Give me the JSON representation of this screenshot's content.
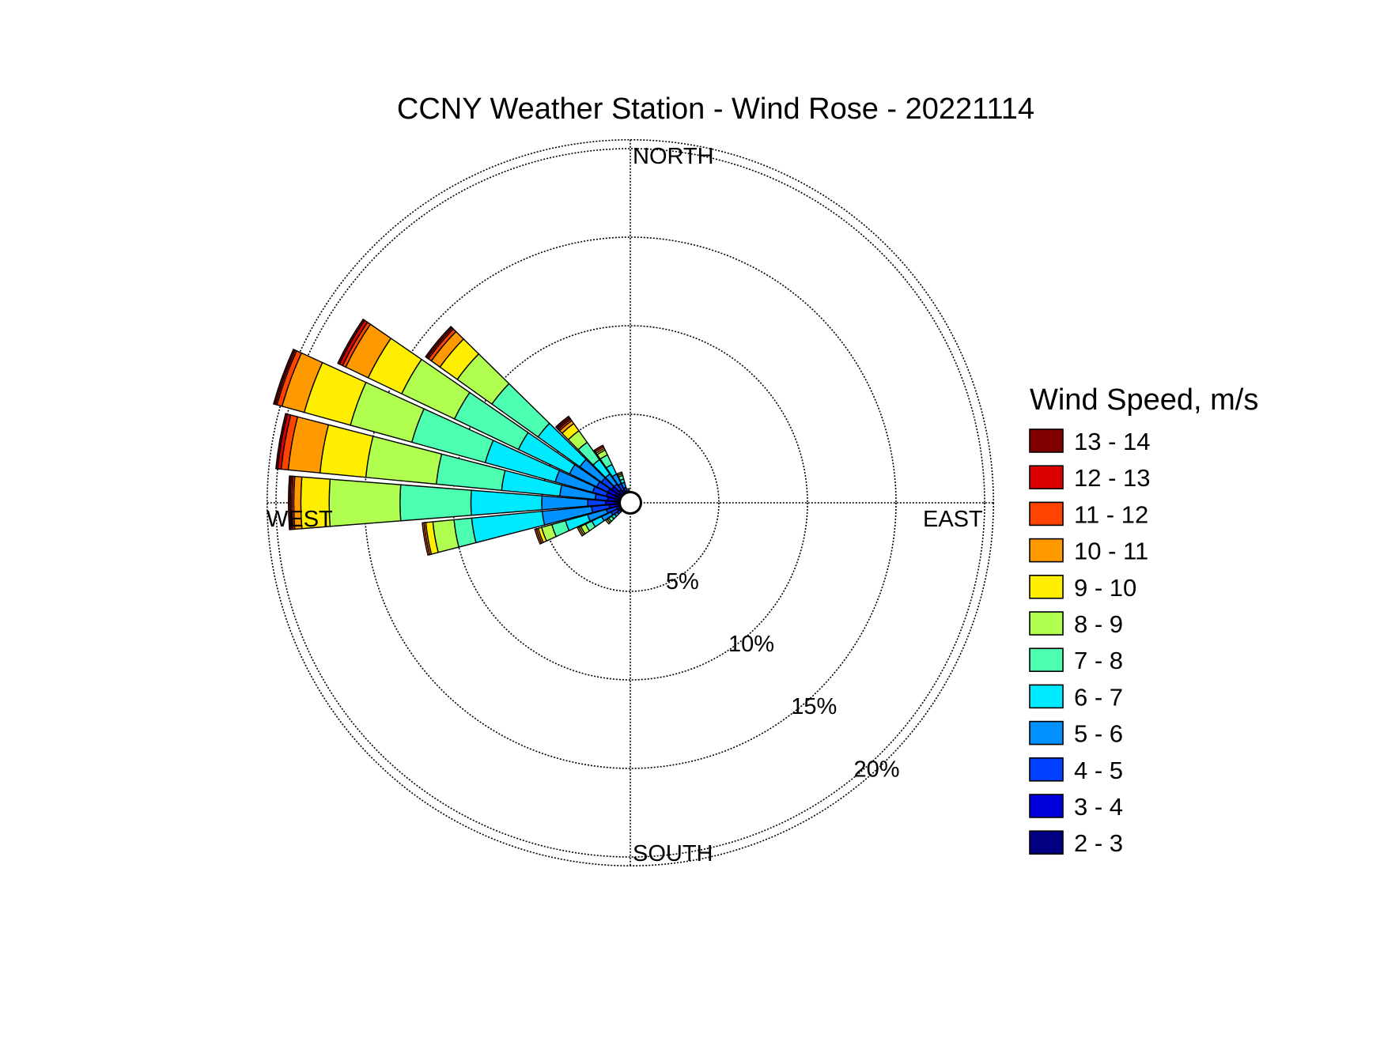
{
  "chart_data": {
    "type": "windrose",
    "title": "CCNY Weather Station - Wind Rose - 20221114",
    "directions": {
      "north": "NORTH",
      "east": "EAST",
      "south": "SOUTH",
      "west": "WEST"
    },
    "radial_unit": "%",
    "radial_ticks": [
      5,
      10,
      15,
      20
    ],
    "radial_tick_labels": [
      "5%",
      "10%",
      "15%",
      "20%"
    ],
    "radial_max": 20.5,
    "calm_radius": 0.6,
    "sector_width_deg": 9,
    "legend_title": "Wind Speed, m/s",
    "speed_bins": [
      "2 - 3",
      "3 - 4",
      "4 - 5",
      "5 - 6",
      "6 - 7",
      "7 - 8",
      "8 - 9",
      "9 - 10",
      "10 - 11",
      "11 - 12",
      "12 - 13",
      "13 - 14"
    ],
    "bin_colors": [
      "#000080",
      "#0000dd",
      "#0040ff",
      "#0090ff",
      "#00eaff",
      "#4dffb0",
      "#b0ff50",
      "#ffee00",
      "#ff9900",
      "#ff4400",
      "#dd0000",
      "#800000"
    ],
    "sectors": [
      {
        "direction_deg": 270,
        "cumulative": [
          0.9,
          1.4,
          2.4,
          5.0,
          9.0,
          13.0,
          17.0,
          18.6,
          19.0,
          19.1,
          19.2,
          19.3
        ]
      },
      {
        "direction_deg": 280,
        "cumulative": [
          0.9,
          1.3,
          2.0,
          4.0,
          7.3,
          11.0,
          15.0,
          17.6,
          19.4,
          19.8,
          20.0,
          20.1
        ]
      },
      {
        "direction_deg": 290,
        "cumulative": [
          0.9,
          1.4,
          2.2,
          4.4,
          8.5,
          12.8,
          16.4,
          19.1,
          20.4,
          20.7,
          20.8,
          20.9
        ]
      },
      {
        "direction_deg": 300,
        "cumulative": [
          0.9,
          1.4,
          2.1,
          3.8,
          7.0,
          11.0,
          14.3,
          16.4,
          17.8,
          18.0,
          18.2,
          18.3
        ]
      },
      {
        "direction_deg": 310,
        "cumulative": [
          0.8,
          1.3,
          2.0,
          3.5,
          6.4,
          9.6,
          12.0,
          13.2,
          13.8,
          14.0,
          14.1,
          14.2
        ]
      },
      {
        "direction_deg": 320,
        "cumulative": [
          0.6,
          0.9,
          1.3,
          2.0,
          3.0,
          4.2,
          5.0,
          5.5,
          5.7,
          5.8,
          5.9,
          6.0
        ]
      },
      {
        "direction_deg": 330,
        "cumulative": [
          0.5,
          0.8,
          1.2,
          1.8,
          2.4,
          3.0,
          3.3,
          3.4,
          3.5,
          3.5,
          3.6,
          3.6
        ]
      },
      {
        "direction_deg": 340,
        "cumulative": [
          0.5,
          0.7,
          0.9,
          1.2,
          1.4,
          1.6,
          1.7,
          1.7,
          1.8,
          1.8,
          1.8,
          1.8
        ]
      },
      {
        "direction_deg": 260,
        "cumulative": [
          0.7,
          1.2,
          2.2,
          5.0,
          9.0,
          10.0,
          11.2,
          11.6,
          11.7,
          11.8,
          11.8,
          11.8
        ]
      },
      {
        "direction_deg": 250,
        "cumulative": [
          0.5,
          0.8,
          1.4,
          2.5,
          3.8,
          4.6,
          5.2,
          5.4,
          5.5,
          5.6,
          5.6,
          5.6
        ]
      },
      {
        "direction_deg": 240,
        "cumulative": [
          0.5,
          0.8,
          1.2,
          1.8,
          2.4,
          2.8,
          3.1,
          3.2,
          3.3,
          3.3,
          3.3,
          3.3
        ]
      },
      {
        "direction_deg": 230,
        "cumulative": [
          0.5,
          0.7,
          0.9,
          1.1,
          1.3,
          1.5,
          1.6,
          1.7,
          1.7,
          1.7,
          1.7,
          1.7
        ]
      },
      {
        "direction_deg": 350,
        "cumulative": [
          0.3,
          0.4,
          0.5,
          0.6,
          0.7,
          0.8,
          0.8,
          0.8,
          0.8,
          0.8,
          0.8,
          0.8
        ]
      }
    ]
  }
}
